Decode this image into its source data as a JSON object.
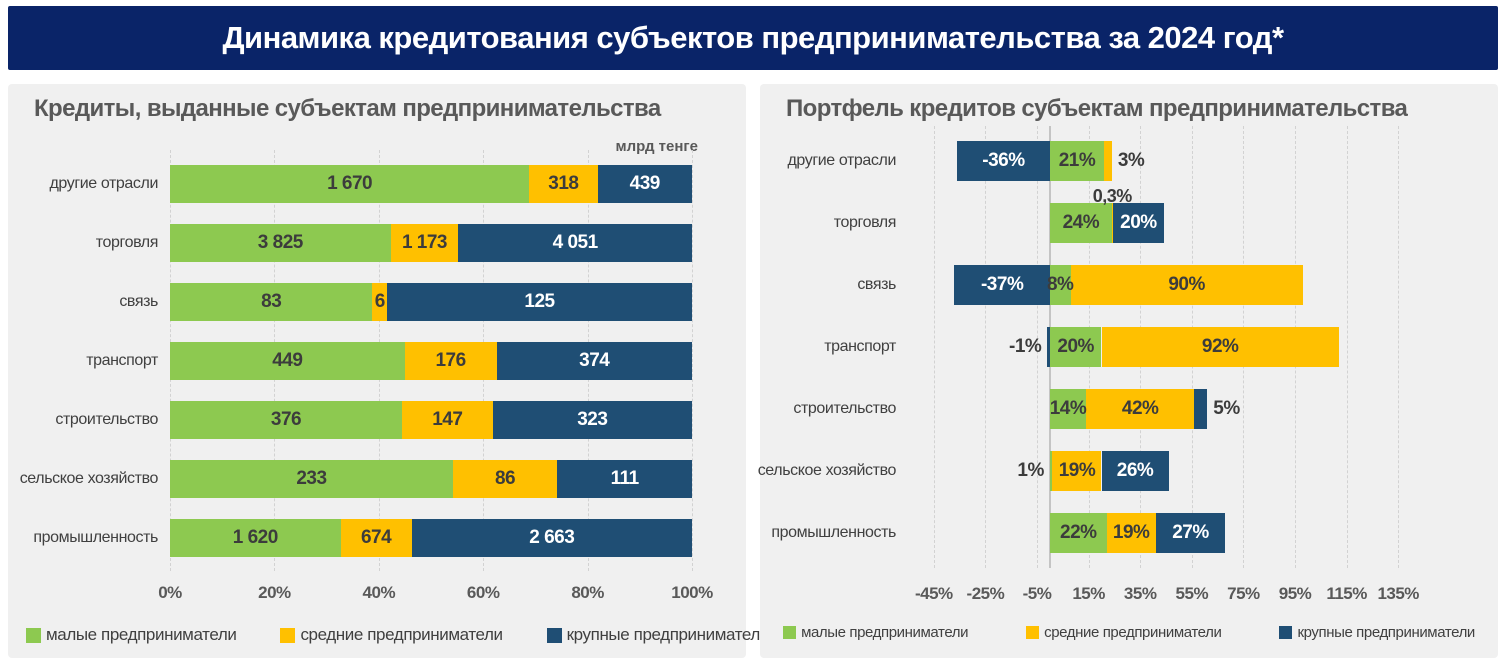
{
  "header": {
    "title": "Динамика кредитования субъектов предпринимательства за 2024 год*"
  },
  "colors": {
    "header_bg": "#0A2468",
    "header_text": "#FFFFFF",
    "panel_bg": "#F0F0F0",
    "grid_line": "#D2D2D2",
    "zero_line": "#C4C4C4",
    "title_text": "#595959",
    "category_text": "#404040",
    "tick_text": "#595959",
    "value_dark": "#3C3C3C",
    "value_light": "#FFFFFF",
    "small_business": "#8DC950",
    "medium_business": "#FFC000",
    "large_business": "#1F4E74"
  },
  "chart_data": [
    {
      "type": "bar",
      "subtype": "horizontal-100pct-stacked",
      "title": "Кредиты, выданные субъектам предпринимательства",
      "unit_label": "млрд тенге",
      "categories": [
        "другие отрасли",
        "торговля",
        "связь",
        "транспорт",
        "строительство",
        "сельское хозяйство",
        "промышленность"
      ],
      "series": [
        {
          "name": "малые предприниматели",
          "color": "#8DC950",
          "values": [
            1670,
            3825,
            83,
            449,
            376,
            233,
            1620
          ],
          "labels": [
            "1 670",
            "3 825",
            "83",
            "449",
            "376",
            "233",
            "1 620"
          ]
        },
        {
          "name": "средние предприниматели",
          "color": "#FFC000",
          "values": [
            318,
            1173,
            6,
            176,
            147,
            86,
            674
          ],
          "labels": [
            "318",
            "1 173",
            "6",
            "176",
            "147",
            "86",
            "674"
          ]
        },
        {
          "name": "крупные предприниматели",
          "color": "#1F4E74",
          "values": [
            439,
            4051,
            125,
            374,
            323,
            111,
            2663
          ],
          "labels": [
            "439",
            "4 051",
            "125",
            "374",
            "323",
            "111",
            "2 663"
          ]
        }
      ],
      "x_ticks": [
        "0%",
        "20%",
        "40%",
        "60%",
        "80%",
        "100%"
      ],
      "x_tick_values": [
        0,
        20,
        40,
        60,
        80,
        100
      ],
      "xlim": [
        0,
        100
      ],
      "grid": "dashed-vertical",
      "legend_position": "bottom-left"
    },
    {
      "type": "bar",
      "subtype": "horizontal-diverging-stacked",
      "title": "Портфель кредитов субъектам предпринимательства",
      "unit_label": "",
      "categories": [
        "другие отрасли",
        "торговля",
        "связь",
        "транспорт",
        "строительство",
        "сельское хозяйство",
        "промышленность"
      ],
      "series": [
        {
          "name": "малые предприниматели",
          "color": "#8DC950",
          "values": [
            21,
            24,
            8,
            20,
            14,
            1,
            22
          ],
          "labels": [
            "21%",
            "24%",
            "8%",
            "20%",
            "14%",
            "1%",
            "22%"
          ]
        },
        {
          "name": "средние предприниматели",
          "color": "#FFC000",
          "values": [
            3,
            0.3,
            90,
            92,
            42,
            19,
            19
          ],
          "labels": [
            "3%",
            "0,3%",
            "90%",
            "92%",
            "42%",
            "19%",
            "19%"
          ]
        },
        {
          "name": "крупные предприниматели",
          "color": "#1F4E74",
          "values": [
            -36,
            20,
            -37,
            -1,
            5,
            26,
            27
          ],
          "labels": [
            "-36%",
            "20%",
            "-37%",
            "-1%",
            "5%",
            "26%",
            "27%"
          ]
        }
      ],
      "x_ticks": [
        "-45%",
        "-25%",
        "-5%",
        "15%",
        "35%",
        "55%",
        "75%",
        "95%",
        "115%",
        "135%"
      ],
      "x_tick_values": [
        -45,
        -25,
        -5,
        15,
        35,
        55,
        75,
        95,
        115,
        135
      ],
      "xlim": [
        -55,
        145
      ],
      "grid": "dashed-vertical",
      "zero_line": true,
      "legend_position": "bottom-center"
    }
  ]
}
